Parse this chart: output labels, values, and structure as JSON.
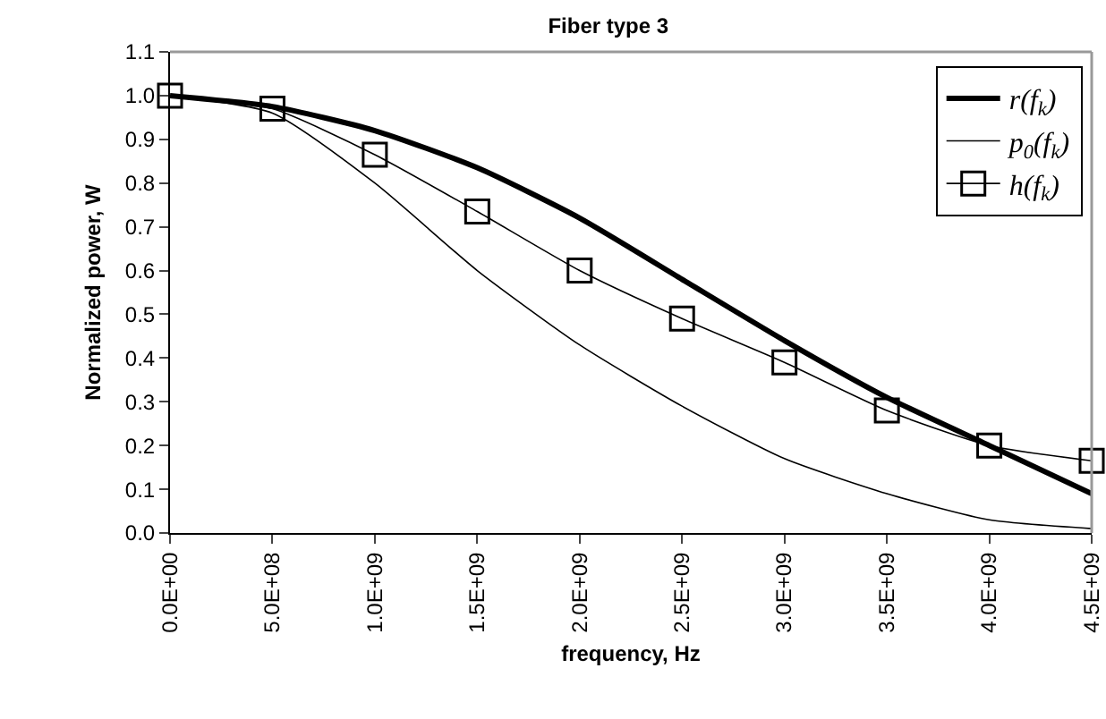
{
  "chart_data": {
    "type": "line",
    "title": "Fiber type 3",
    "xlabel": "frequency, Hz",
    "ylabel": "Normalized power, W",
    "x": [
      0,
      500000000,
      1000000000,
      1500000000,
      2000000000,
      2500000000,
      3000000000,
      3500000000,
      4000000000,
      4500000000
    ],
    "series": [
      {
        "name": "r(f$_{k}$)",
        "color": "#000000",
        "marker": "none",
        "values": [
          1.0,
          0.975,
          0.92,
          0.835,
          0.72,
          0.58,
          0.44,
          0.31,
          0.2,
          0.09
        ]
      },
      {
        "name": "p$_{0}$(f$_{k}$)",
        "color": "#000000",
        "marker": "none",
        "values": [
          1.0,
          0.96,
          0.8,
          0.6,
          0.43,
          0.29,
          0.17,
          0.09,
          0.03,
          0.01
        ]
      },
      {
        "name": "h(f$_{k}$)",
        "color": "#000000",
        "marker": "square",
        "values": [
          1.0,
          0.97,
          0.865,
          0.735,
          0.6,
          0.49,
          0.39,
          0.28,
          0.2,
          0.165
        ]
      }
    ],
    "xlim": [
      0,
      4500000000
    ],
    "xticks": [
      {
        "value": 0,
        "label": "0.0E+00"
      },
      {
        "value": 500000000,
        "label": "5.0E+08"
      },
      {
        "value": 1000000000,
        "label": "1.0E+09"
      },
      {
        "value": 1500000000,
        "label": "1.5E+09"
      },
      {
        "value": 2000000000,
        "label": "2.0E+09"
      },
      {
        "value": 2500000000,
        "label": "2.5E+09"
      },
      {
        "value": 3000000000,
        "label": "3.0E+09"
      },
      {
        "value": 3500000000,
        "label": "3.5E+09"
      },
      {
        "value": 4000000000,
        "label": "4.0E+09"
      },
      {
        "value": 4500000000,
        "label": "4.5E+09"
      }
    ],
    "ylim": [
      0,
      1.1
    ],
    "yticks": [
      {
        "value": 0,
        "label": "0.0"
      },
      0.1,
      0.2,
      0.3,
      0.4,
      0.5,
      0.6,
      0.7,
      0.8,
      0.9,
      {
        "value": 1,
        "label": "1.0"
      },
      1.1
    ],
    "grid": false,
    "legend": "top right",
    "line_style": "solid"
  }
}
